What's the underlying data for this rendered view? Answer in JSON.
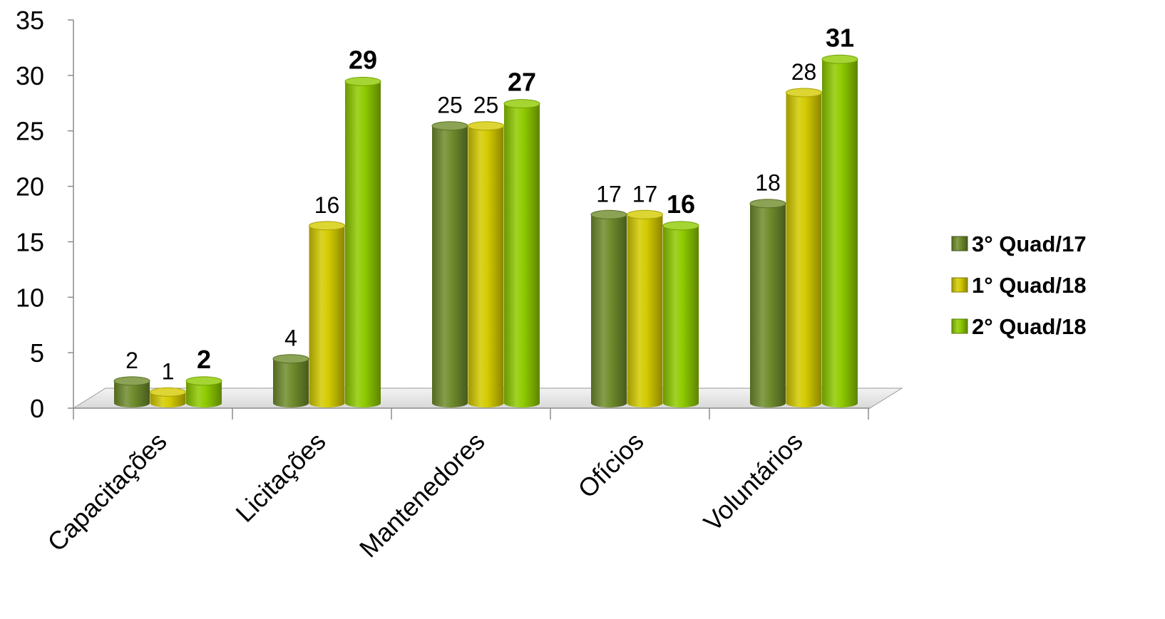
{
  "chart_data": {
    "type": "bar",
    "style": "3d-cylinder",
    "categories": [
      "Capacitações",
      "Licitações",
      "Mantenedores",
      "Ofícios",
      "Voluntários"
    ],
    "series": [
      {
        "name": "3° Quad/17",
        "values": [
          2,
          4,
          25,
          17,
          18
        ],
        "color": "#6f8c2c",
        "label_bold": false
      },
      {
        "name": "1° Quad/18",
        "values": [
          1,
          16,
          25,
          17,
          28
        ],
        "color": "#d4cb00",
        "label_bold": false
      },
      {
        "name": "2° Quad/18",
        "values": [
          2,
          29,
          27,
          16,
          31
        ],
        "color": "#8fcb00",
        "label_bold": true
      }
    ],
    "y_ticks": [
      "0",
      "5",
      "10",
      "15",
      "20",
      "25",
      "30",
      "35"
    ],
    "ylim": [
      0,
      35
    ],
    "grid": false,
    "legend_position": "right",
    "title": "",
    "xlabel": "",
    "ylabel": ""
  }
}
